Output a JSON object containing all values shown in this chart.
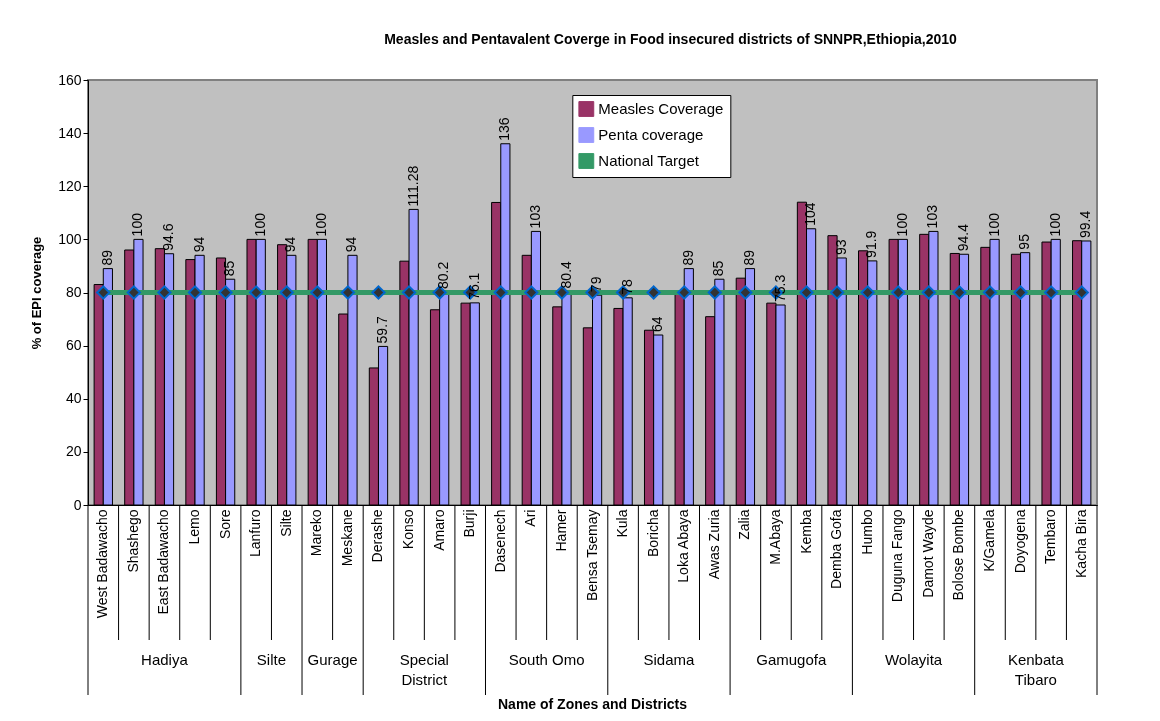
{
  "chart_data": {
    "type": "bar",
    "title": "Measles and Pentavalent Coverge in Food insecured districts of SNNPR,Ethiopia,2010",
    "ylabel": "% of EPI coverage",
    "categories": [
      "West Badawacho",
      "Shashego",
      "East Badawacho",
      "Lemo",
      "Sore",
      "Lanfuro",
      "Silte",
      "Mareko",
      "Meskane",
      "Derashe",
      "Konso",
      "Amaro",
      "Burji",
      "Dasenech",
      "Ari",
      "Hamer",
      "Bensa Tsemay",
      "Kula",
      "Boricha",
      "Loka Abaya",
      "Awas Zuria",
      "Zalia",
      "M.Abaya",
      "Kemba",
      "Demba Gofa",
      "Humbo",
      "Duguna Fango",
      "Damot Wayde",
      "Bolose Bombe",
      "K/Gamela",
      "Doyogena",
      "Tembaro",
      "Kacha Bira"
    ],
    "series": [
      {
        "name": "Measles Coverage",
        "color": "#993366",
        "values": [
          83,
          96,
          96.5,
          92.4,
          93,
          100,
          98,
          100,
          71.9,
          51.6,
          91.8,
          73.5,
          76,
          113.9,
          94,
          74.6,
          66.7,
          74,
          65.8,
          80,
          70.9,
          85.4,
          76,
          114,
          101.4,
          95.7,
          100,
          101.9,
          94.7,
          97,
          94.4,
          99,
          99.5
        ]
      },
      {
        "name": "Penta coverage",
        "color": "#9999ff",
        "values": [
          89,
          100,
          94.6,
          94,
          85,
          100,
          94,
          100,
          94,
          59.7,
          111.28,
          80.2,
          76.1,
          136,
          103,
          80.4,
          79,
          78,
          64,
          89,
          85,
          89,
          75.3,
          104,
          93,
          91.9,
          100,
          103,
          94.4,
          100,
          95,
          100,
          99.4
        ],
        "value_labels": [
          "89",
          "100",
          "94.6",
          "94",
          "85",
          "100",
          "94",
          "100",
          "94",
          "59.7",
          "111.28",
          "80.2",
          "76.1",
          "136",
          "103",
          "80.4",
          "79",
          "78",
          "64",
          "89",
          "85",
          "89",
          "75.3",
          "104",
          "93",
          "91.9",
          "100",
          "103",
          "94.4",
          "100",
          "95",
          "100",
          "99.4"
        ]
      },
      {
        "name": "National Target",
        "type": "line",
        "color": "#339966",
        "values": [
          80,
          80,
          80,
          80,
          80,
          80,
          80,
          80,
          80,
          80,
          80,
          80,
          80,
          80,
          80,
          80,
          80,
          80,
          80,
          80,
          80,
          80,
          80,
          80,
          80,
          80,
          80,
          80,
          80,
          80,
          80,
          80,
          80
        ]
      }
    ],
    "marker": "diamond",
    "ylim": [
      0,
      160
    ],
    "yticks": [
      0,
      20,
      40,
      60,
      80,
      100,
      120,
      140,
      160
    ],
    "legend": "top",
    "annotations": [
      "Hadiya",
      "Silte",
      "Gurage",
      "Special District",
      "South Omo",
      "Sidama",
      "Gamugofa",
      "Wolayita",
      "Kenbata Tibaro",
      "Name of Zones and Districts"
    ]
  }
}
